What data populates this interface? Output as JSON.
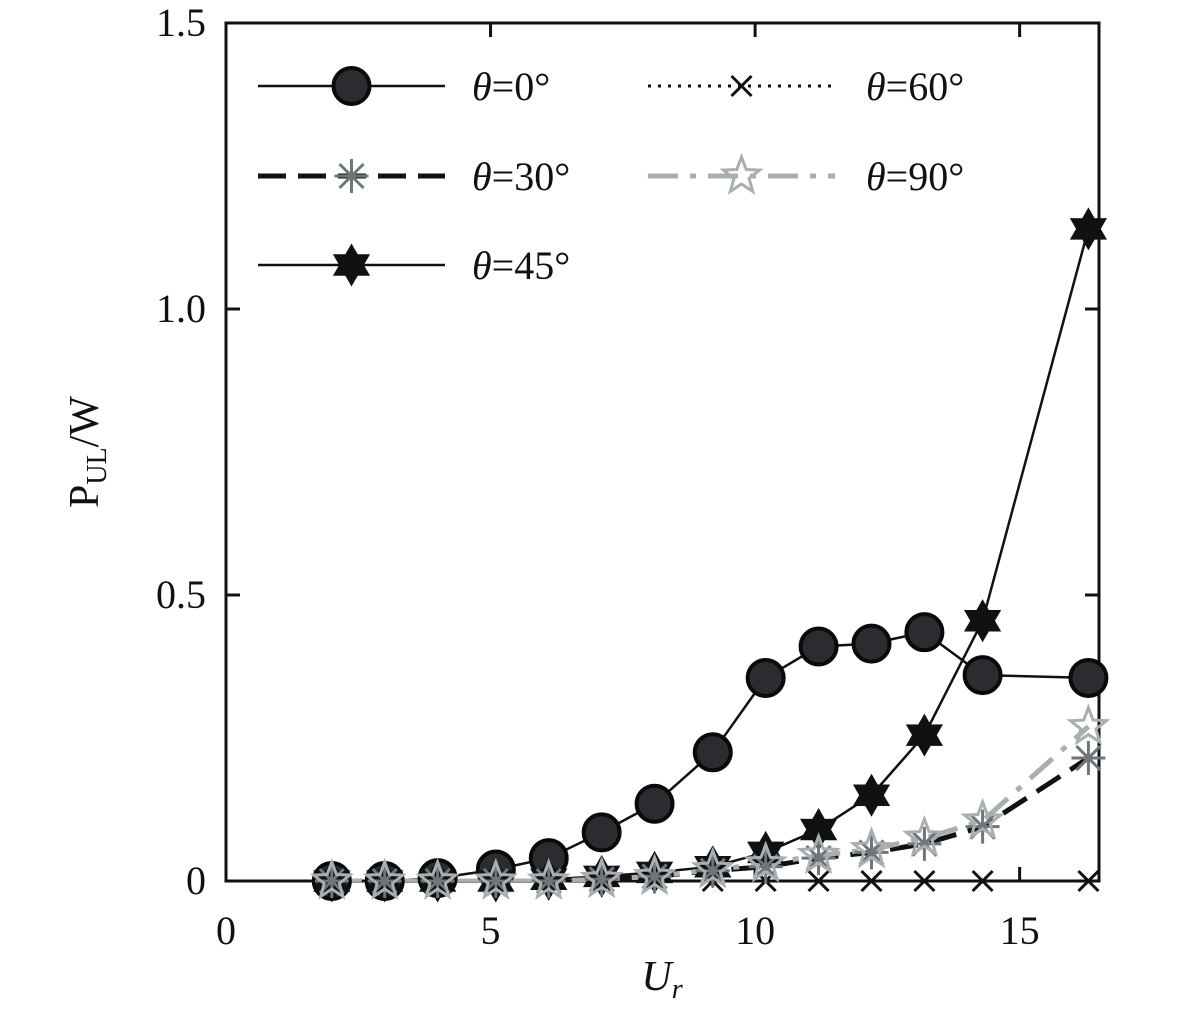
{
  "chart_data": {
    "type": "line",
    "xlabel_main": "U",
    "xlabel_sub": "r",
    "ylabel_main": "P",
    "ylabel_sub": "UL",
    "ylabel_tail": "/W",
    "xlim": [
      0,
      16.5
    ],
    "ylim": [
      0,
      1.5
    ],
    "xticks": [
      0,
      5,
      10,
      15
    ],
    "xtick_labels": [
      "0",
      "5",
      "10",
      "15"
    ],
    "yticks": [
      0,
      0.5,
      1.0,
      1.5
    ],
    "ytick_labels": [
      "0",
      "0.5",
      "1.0",
      "1.5"
    ],
    "grid": false,
    "legend_position": "top-left",
    "x": [
      2.0,
      3.0,
      4.0,
      5.1,
      6.1,
      7.1,
      8.1,
      9.2,
      10.2,
      11.2,
      12.2,
      13.2,
      14.3,
      16.3
    ],
    "series": [
      {
        "name": "θ=0°",
        "values": [
          0.0,
          0.0,
          0.005,
          0.02,
          0.04,
          0.085,
          0.135,
          0.225,
          0.355,
          0.41,
          0.415,
          0.435,
          0.36,
          0.355
        ],
        "marker": "circle",
        "line": "solid",
        "color": "#111111",
        "fill": "#2a2c2f"
      },
      {
        "name": "θ=30°",
        "values": [
          0.0,
          0.0,
          0.0,
          0.0,
          0.0,
          0.003,
          0.008,
          0.018,
          0.025,
          0.04,
          0.05,
          0.065,
          0.095,
          0.215
        ],
        "marker": "asterisk",
        "line": "dash",
        "color": "#111111",
        "markerColor": "#6f767a"
      },
      {
        "name": "θ=45°",
        "values": [
          0.0,
          0.0,
          0.0,
          0.0,
          0.003,
          0.008,
          0.015,
          0.025,
          0.05,
          0.09,
          0.15,
          0.255,
          0.455,
          1.14
        ],
        "marker": "hexagram",
        "line": "solid",
        "color": "#111111",
        "fill": "#111111"
      },
      {
        "name": "θ=60°",
        "values": [
          0.0,
          0.0,
          0.0,
          0.0,
          0.0,
          0.0,
          0.0,
          0.0,
          0.0,
          0.0,
          0.0,
          0.0,
          0.0,
          0.0
        ],
        "marker": "cross",
        "line": "dot",
        "color": "#111111"
      },
      {
        "name": "θ=90°",
        "values": [
          0.0,
          0.0,
          0.0,
          0.0,
          0.0,
          0.003,
          0.008,
          0.02,
          0.03,
          0.045,
          0.055,
          0.075,
          0.105,
          0.27
        ],
        "marker": "star-open",
        "line": "dashdot",
        "color": "#a9aeb1"
      }
    ]
  }
}
